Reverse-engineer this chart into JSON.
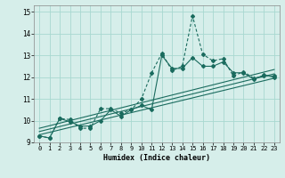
{
  "xlabel": "Humidex (Indice chaleur)",
  "bg_color": "#d6eeea",
  "line_color": "#1a6b5e",
  "grid_color": "#a8d8d0",
  "xlim": [
    -0.5,
    23.5
  ],
  "ylim": [
    9.0,
    15.3
  ],
  "yticks": [
    9,
    10,
    11,
    12,
    13,
    14,
    15
  ],
  "xticks": [
    0,
    1,
    2,
    3,
    4,
    5,
    6,
    7,
    8,
    9,
    10,
    11,
    12,
    13,
    14,
    15,
    16,
    17,
    18,
    19,
    20,
    21,
    22,
    23
  ],
  "series1_x": [
    0,
    1,
    2,
    3,
    4,
    5,
    6,
    7,
    8,
    9,
    10,
    11,
    12,
    13,
    14,
    15,
    16,
    17,
    18,
    19,
    20,
    21,
    22,
    23
  ],
  "series1_y": [
    9.3,
    9.2,
    10.1,
    9.95,
    9.75,
    9.75,
    10.0,
    10.5,
    10.2,
    10.5,
    10.7,
    10.5,
    13.0,
    12.4,
    12.4,
    12.9,
    12.5,
    12.5,
    12.7,
    12.2,
    12.2,
    11.9,
    12.1,
    12.0
  ],
  "series2_x": [
    0,
    1,
    2,
    3,
    4,
    5,
    6,
    7,
    8,
    9,
    10,
    11,
    12,
    13,
    14,
    15,
    16,
    17,
    18,
    19,
    20,
    21,
    22,
    23
  ],
  "series2_y": [
    9.3,
    9.2,
    10.1,
    10.05,
    9.65,
    9.65,
    10.55,
    10.55,
    10.35,
    10.5,
    11.0,
    12.2,
    13.1,
    12.3,
    12.5,
    14.82,
    13.05,
    12.75,
    12.85,
    12.05,
    12.25,
    11.95,
    12.05,
    12.05
  ],
  "trend1_x": [
    0,
    23
  ],
  "trend1_y": [
    9.5,
    12.15
  ],
  "trend2_x": [
    0,
    23
  ],
  "trend2_y": [
    9.35,
    11.95
  ],
  "trend3_x": [
    0,
    23
  ],
  "trend3_y": [
    9.65,
    12.35
  ]
}
